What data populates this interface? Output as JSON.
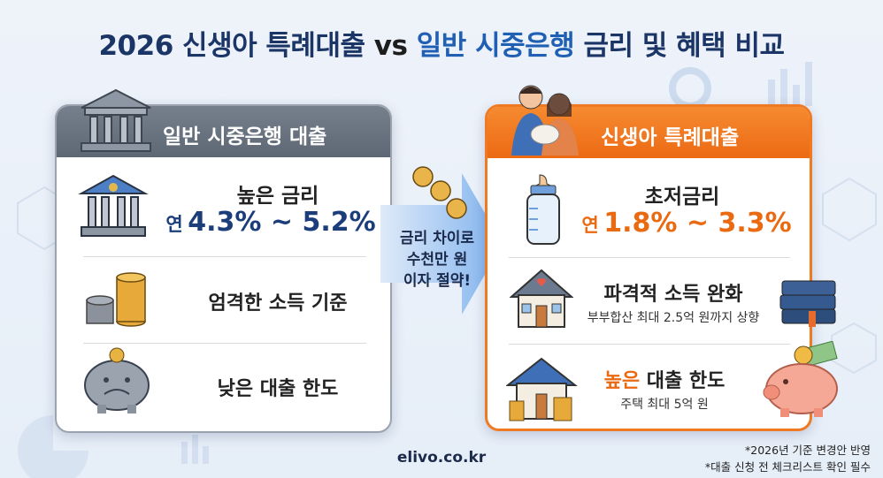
{
  "title": [
    "2026 신생아 특례대출",
    "vs",
    "일반 시중은행",
    "금리 및 혜택 비교"
  ],
  "bank_card": {
    "header": "일반 시중은행 대출",
    "items": [
      {
        "title": "높은 금리",
        "rate_prefix": "연",
        "rate": "4.3% ~ 5.2%"
      },
      {
        "title": "엄격한 소득 기준"
      },
      {
        "title": "낮은 대출 한도"
      }
    ]
  },
  "arrow_text": [
    "금리 차이로",
    "수천만 원",
    "이자 절약!"
  ],
  "newborn_card": {
    "header": "신생아 특례대출",
    "items": [
      {
        "title": "초저금리",
        "rate_prefix": "연",
        "rate": "1.8% ~ 3.3%"
      },
      {
        "title": "파격적 소득 완화",
        "subtext": "부부합산 최대 2.5억 원까지 상향"
      },
      {
        "title_highlight": "높은",
        "title": "대출 한도",
        "subtext": "주택 최대 5억 원"
      }
    ]
  },
  "footer": {
    "website": "elivo.co.kr",
    "notes": [
      "*2026년 기준 변경안 반영",
      "*대출 신청 전 체크리스트 확인 필수"
    ]
  }
}
